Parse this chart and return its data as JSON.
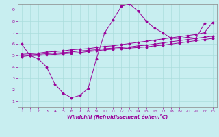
{
  "background_color": "#c8eef0",
  "line_color": "#990099",
  "grid_color": "#aadddd",
  "xlabel": "Windchill (Refroidissement éolien,°C)",
  "xlim": [
    -0.5,
    23.5
  ],
  "ylim": [
    0.5,
    9.5
  ],
  "xticks": [
    0,
    1,
    2,
    3,
    4,
    5,
    6,
    7,
    8,
    9,
    10,
    11,
    12,
    13,
    14,
    15,
    16,
    17,
    18,
    19,
    20,
    21,
    22,
    23
  ],
  "yticks": [
    1,
    2,
    3,
    4,
    5,
    6,
    7,
    8,
    9
  ],
  "series": [
    {
      "x": [
        0,
        1,
        2,
        3,
        4,
        5,
        6,
        7,
        8,
        9,
        10,
        11,
        12,
        13,
        14,
        15,
        16,
        17,
        18,
        19,
        20,
        21,
        22
      ],
      "y": [
        6.0,
        5.0,
        4.7,
        4.0,
        2.5,
        1.7,
        1.3,
        1.5,
        2.1,
        4.7,
        7.0,
        8.1,
        9.3,
        9.5,
        8.9,
        8.0,
        7.4,
        7.0,
        6.5,
        6.5,
        6.6,
        6.5,
        7.8
      ]
    },
    {
      "x": [
        0,
        1,
        2,
        3,
        4,
        5,
        6,
        7,
        8,
        9,
        10,
        11,
        12,
        13,
        14,
        15,
        16,
        17,
        18,
        19,
        20,
        21,
        22,
        23
      ],
      "y": [
        4.9,
        5.0,
        5.0,
        5.05,
        5.1,
        5.15,
        5.2,
        5.25,
        5.35,
        5.4,
        5.5,
        5.55,
        5.6,
        5.65,
        5.7,
        5.75,
        5.85,
        5.9,
        6.0,
        6.1,
        6.2,
        6.3,
        6.4,
        6.5
      ]
    },
    {
      "x": [
        0,
        1,
        2,
        3,
        4,
        5,
        6,
        7,
        8,
        9,
        10,
        11,
        12,
        13,
        14,
        15,
        16,
        17,
        18,
        19,
        20,
        21,
        22,
        23
      ],
      "y": [
        5.0,
        5.05,
        5.1,
        5.15,
        5.2,
        5.25,
        5.3,
        5.4,
        5.45,
        5.5,
        5.6,
        5.65,
        5.7,
        5.75,
        5.85,
        5.9,
        6.0,
        6.1,
        6.2,
        6.3,
        6.4,
        6.5,
        6.6,
        6.7
      ]
    },
    {
      "x": [
        0,
        1,
        2,
        3,
        4,
        5,
        6,
        7,
        8,
        9,
        10,
        11,
        12,
        13,
        14,
        15,
        16,
        17,
        18,
        19,
        20,
        21,
        22,
        23
      ],
      "y": [
        5.1,
        5.15,
        5.2,
        5.3,
        5.35,
        5.4,
        5.5,
        5.55,
        5.6,
        5.7,
        5.8,
        5.85,
        5.95,
        6.05,
        6.15,
        6.25,
        6.35,
        6.45,
        6.55,
        6.65,
        6.75,
        6.85,
        7.0,
        7.9
      ]
    }
  ]
}
